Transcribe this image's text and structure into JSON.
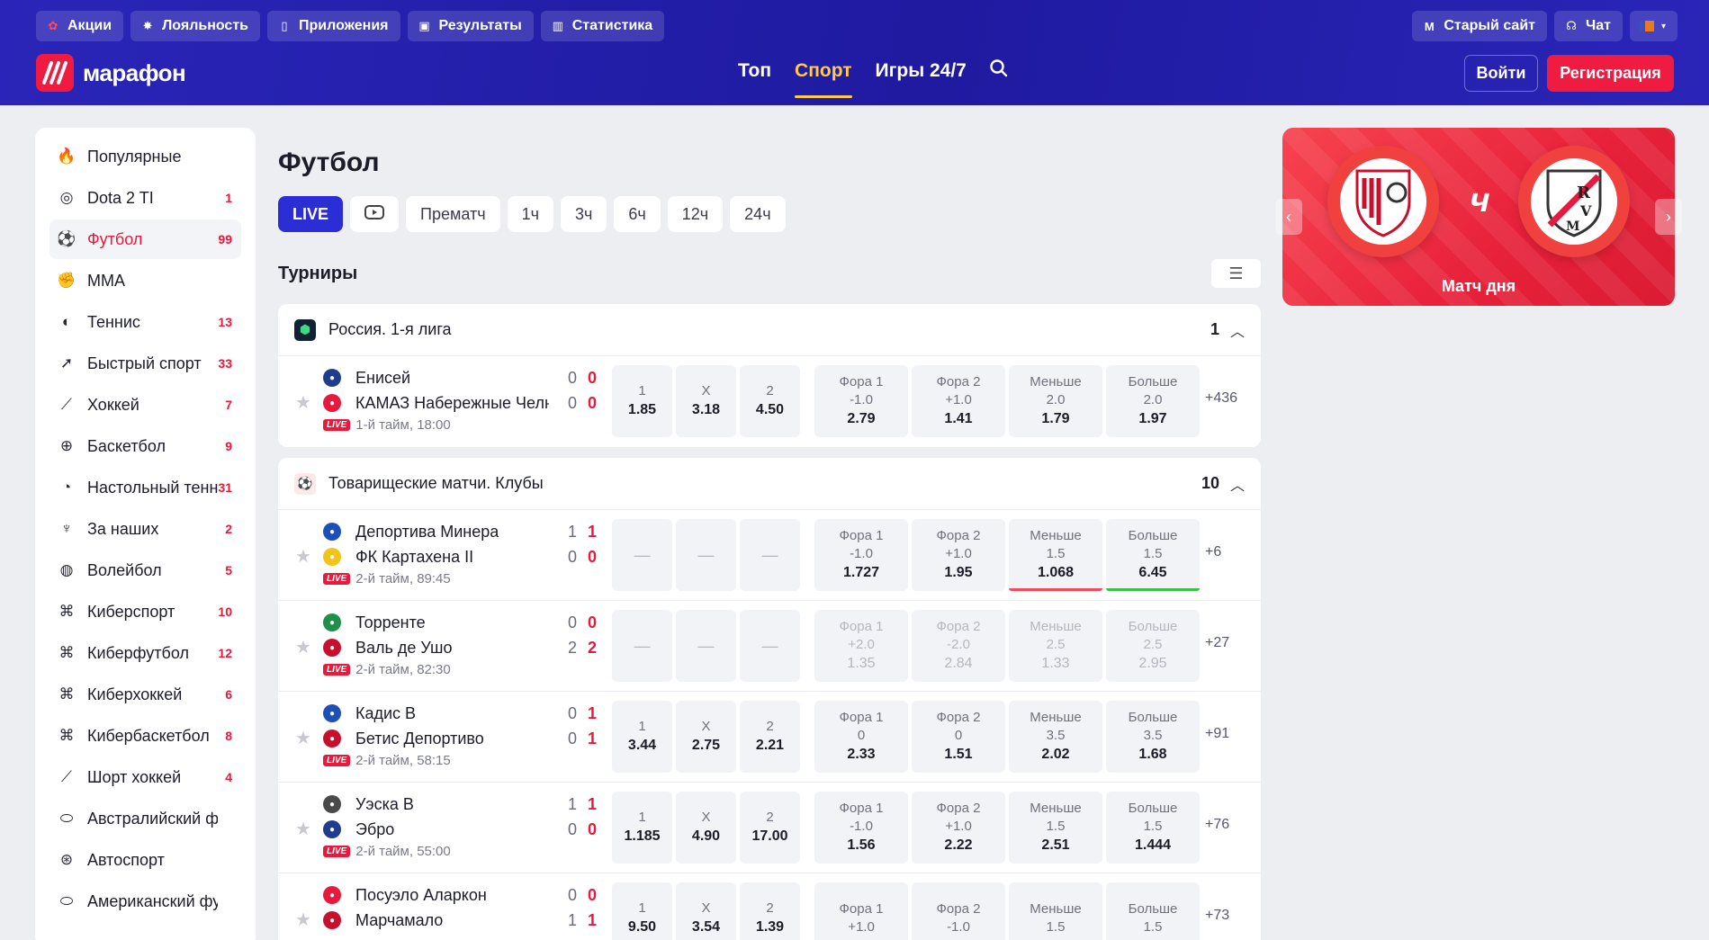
{
  "header": {
    "top_links": [
      {
        "label": "Акции",
        "icon": "gift-icon"
      },
      {
        "label": "Лояльность",
        "icon": "star-badge-icon"
      },
      {
        "label": "Приложения",
        "icon": "phone-icon"
      },
      {
        "label": "Результаты",
        "icon": "results-icon"
      },
      {
        "label": "Статистика",
        "icon": "stats-icon"
      }
    ],
    "old_site": "Старый сайт",
    "chat": "Чат",
    "logo_text": "марафон",
    "nav": [
      {
        "label": "Топ",
        "active": false
      },
      {
        "label": "Спорт",
        "active": true
      },
      {
        "label": "Игры 24/7",
        "active": false
      }
    ],
    "login": "Войти",
    "register": "Регистрация"
  },
  "sidebar": {
    "items": [
      {
        "label": "Популярные",
        "count": "",
        "icon": "fire-icon",
        "active": false
      },
      {
        "label": "Dota 2 TI",
        "count": "1",
        "icon": "dota-icon",
        "active": false
      },
      {
        "label": "Футбол",
        "count": "99",
        "icon": "soccer-ball-icon",
        "active": true
      },
      {
        "label": "MMA",
        "count": "",
        "icon": "mma-glove-icon",
        "active": false
      },
      {
        "label": "Теннис",
        "count": "13",
        "icon": "tennis-ball-icon",
        "active": false
      },
      {
        "label": "Быстрый спорт",
        "count": "33",
        "icon": "rocket-icon",
        "active": false
      },
      {
        "label": "Хоккей",
        "count": "7",
        "icon": "hockey-stick-icon",
        "active": false
      },
      {
        "label": "Баскетбол",
        "count": "9",
        "icon": "basketball-icon",
        "active": false
      },
      {
        "label": "Настольный теннис",
        "count": "31",
        "icon": "ping-pong-icon",
        "active": false
      },
      {
        "label": "За наших",
        "count": "2",
        "icon": "trophy-icon",
        "active": false
      },
      {
        "label": "Волейбол",
        "count": "5",
        "icon": "volleyball-icon",
        "active": false
      },
      {
        "label": "Киберспорт",
        "count": "10",
        "icon": "gamepad-icon",
        "active": false
      },
      {
        "label": "Киберфутбол",
        "count": "12",
        "icon": "gamepad-icon",
        "active": false
      },
      {
        "label": "Киберхоккей",
        "count": "6",
        "icon": "gamepad-icon",
        "active": false
      },
      {
        "label": "Кибербаскетбол",
        "count": "8",
        "icon": "gamepad-icon",
        "active": false
      },
      {
        "label": "Шорт хоккей",
        "count": "4",
        "icon": "hockey-stick-icon",
        "active": false
      },
      {
        "label": "Австралийский футбол",
        "count": "",
        "icon": "rugby-ball-icon",
        "active": false
      },
      {
        "label": "Автоспорт",
        "count": "",
        "icon": "steering-wheel-icon",
        "active": false
      },
      {
        "label": "Американский футбол",
        "count": "",
        "icon": "rugby-ball-icon",
        "active": false
      }
    ]
  },
  "main": {
    "title": "Футбол",
    "filters": [
      "LIVE",
      "",
      "Прематч",
      "1ч",
      "3ч",
      "6ч",
      "12ч",
      "24ч"
    ],
    "section_title": "Турниры",
    "tournaments": [
      {
        "name": "Россия. 1-я лига",
        "count": "1",
        "matches": [
          {
            "team1": "Енисей",
            "team2": "КАМАЗ Набережные Челны",
            "score1": [
              "0",
              "0"
            ],
            "score2": [
              "0",
              "0"
            ],
            "time": "1-й тайм, 18:00",
            "odds": [
              {
                "lab": "1",
                "val": "1.85"
              },
              {
                "lab": "X",
                "val": "3.18"
              },
              {
                "lab": "2",
                "val": "4.50"
              },
              {
                "lab": "Фора 1",
                "sub": "-1.0",
                "val": "2.79"
              },
              {
                "lab": "Фора 2",
                "sub": "+1.0",
                "val": "1.41"
              },
              {
                "lab": "Меньше",
                "sub": "2.0",
                "val": "1.79"
              },
              {
                "lab": "Больше",
                "sub": "2.0",
                "val": "1.97"
              }
            ],
            "more": "+436"
          }
        ]
      },
      {
        "name": "Товарищеские матчи. Клубы",
        "count": "10",
        "matches": [
          {
            "team1": "Депортива Минера",
            "team2": "ФК Картахена II",
            "score1": [
              "1",
              "1"
            ],
            "score2": [
              "0",
              "0"
            ],
            "time": "2-й тайм, 89:45",
            "odds": [
              {
                "lab": "—",
                "val": ""
              },
              {
                "lab": "—",
                "val": ""
              },
              {
                "lab": "—",
                "val": ""
              },
              {
                "lab": "Фора 1",
                "sub": "-1.0",
                "val": "1.727"
              },
              {
                "lab": "Фора 2",
                "sub": "+1.0",
                "val": "1.95"
              },
              {
                "lab": "Меньше",
                "sub": "1.5",
                "val": "1.068"
              },
              {
                "lab": "Больше",
                "sub": "1.5",
                "val": "6.45"
              }
            ],
            "more": "+6"
          },
          {
            "team1": "Торренте",
            "team2": "Валь де Ушо",
            "score1": [
              "0",
              "0"
            ],
            "score2": [
              "2",
              "2"
            ],
            "time": "2-й тайм, 82:30",
            "odds": [
              {
                "lab": "—",
                "val": ""
              },
              {
                "lab": "—",
                "val": ""
              },
              {
                "lab": "—",
                "val": ""
              },
              {
                "lab": "Фора 1",
                "sub": "+2.0",
                "val": "1.35"
              },
              {
                "lab": "Фора 2",
                "sub": "-2.0",
                "val": "2.84"
              },
              {
                "lab": "Меньше",
                "sub": "2.5",
                "val": "1.33"
              },
              {
                "lab": "Больше",
                "sub": "2.5",
                "val": "2.95"
              }
            ],
            "more": "+27"
          },
          {
            "team1": "Кадис B",
            "team2": "Бетис Депортиво",
            "score1": [
              "0",
              "1"
            ],
            "score2": [
              "0",
              "1"
            ],
            "time": "2-й тайм, 58:15",
            "odds": [
              {
                "lab": "1",
                "val": "3.44"
              },
              {
                "lab": "X",
                "val": "2.75"
              },
              {
                "lab": "2",
                "val": "2.21"
              },
              {
                "lab": "Фора 1",
                "sub": "0",
                "val": "2.33"
              },
              {
                "lab": "Фора 2",
                "sub": "0",
                "val": "1.51"
              },
              {
                "lab": "Меньше",
                "sub": "3.5",
                "val": "2.02"
              },
              {
                "lab": "Больше",
                "sub": "3.5",
                "val": "1.68"
              }
            ],
            "more": "+91"
          },
          {
            "team1": "Уэска B",
            "team2": "Эбро",
            "score1": [
              "1",
              "1"
            ],
            "score2": [
              "0",
              "0"
            ],
            "time": "2-й тайм, 55:00",
            "odds": [
              {
                "lab": "1",
                "val": "1.185"
              },
              {
                "lab": "X",
                "val": "4.90"
              },
              {
                "lab": "2",
                "val": "17.00"
              },
              {
                "lab": "Фора 1",
                "sub": "-1.0",
                "val": "1.56"
              },
              {
                "lab": "Фора 2",
                "sub": "+1.0",
                "val": "2.22"
              },
              {
                "lab": "Меньше",
                "sub": "1.5",
                "val": "2.51"
              },
              {
                "lab": "Больше",
                "sub": "1.5",
                "val": "1.444"
              }
            ],
            "more": "+76"
          },
          {
            "team1": "Посуэло Аларкон",
            "team2": "Марчамало",
            "score1": [
              "0",
              "0"
            ],
            "score2": [
              "1",
              "1"
            ],
            "time": "",
            "odds": [
              {
                "lab": "1",
                "val": "9.50"
              },
              {
                "lab": "X",
                "val": "3.54"
              },
              {
                "lab": "2",
                "val": "1.39"
              },
              {
                "lab": "Фора 1",
                "sub": "+1.0",
                "val": ""
              },
              {
                "lab": "Фора 2",
                "sub": "-1.0",
                "val": ""
              },
              {
                "lab": "Меньше",
                "sub": "1.5",
                "val": ""
              },
              {
                "lab": "Больше",
                "sub": "1.5",
                "val": ""
              }
            ],
            "more": "+73"
          }
        ]
      }
    ],
    "live_tag": "LIVE"
  },
  "banner": {
    "title": "Матч дня",
    "team1_crest": "sevilla-crest-icon",
    "team2_crest": "rayo-vallecano-crest-icon"
  },
  "colors": {
    "header_bg": "#2a25b8",
    "accent_red": "#ef1b41",
    "active_nav": "#ffc94a",
    "live_blue": "#2a2ed4"
  }
}
